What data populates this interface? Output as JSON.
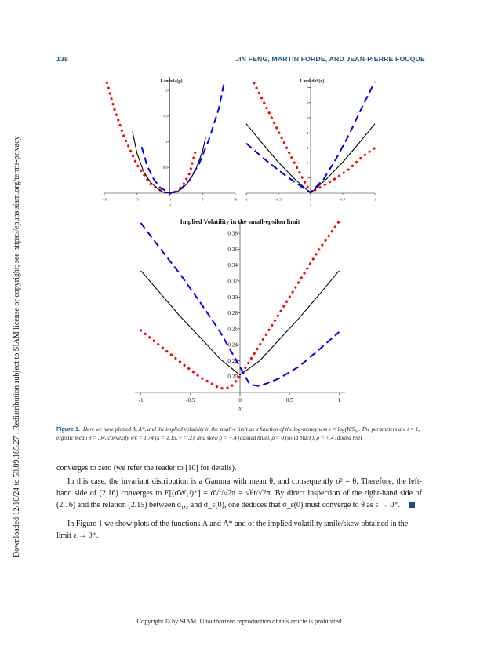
{
  "sidebar": {
    "text": "Downloaded 12/10/24 to 50.89.185.27 . Redistribution subject to SIAM license or copyright; see https://epubs.siam.org/terms-privacy"
  },
  "header": {
    "page_number": "138",
    "authors": "JIN FENG, MARTIN FORDE, AND JEAN-PIERRE FOUQUE"
  },
  "chart_data": [
    {
      "type": "line",
      "title": "Lambda(p)",
      "xlabel": "p",
      "xlim": [
        -10,
        10
      ],
      "ylim": [
        0,
        2.2
      ],
      "xticks": [
        "-10",
        "-5",
        "0",
        "5",
        "10"
      ],
      "yticks": [
        "0.5",
        "1",
        "1.5",
        "2"
      ],
      "series": [
        {
          "style": "dotted",
          "color": "#ff0000",
          "x": [
            -9.6,
            -8.5,
            -7,
            -5,
            -3,
            -1,
            0,
            1,
            2,
            3,
            4
          ],
          "y": [
            2.15,
            1.65,
            1.1,
            0.55,
            0.18,
            0.02,
            0,
            0.03,
            0.15,
            0.38,
            0.85
          ]
        },
        {
          "style": "solid",
          "color": "#000000",
          "x": [
            -5.7,
            -5,
            -4,
            -3,
            -2,
            -1,
            0,
            1,
            2,
            3,
            4,
            5,
            5.5
          ],
          "y": [
            1.2,
            0.77,
            0.42,
            0.22,
            0.1,
            0.02,
            0,
            0.02,
            0.1,
            0.24,
            0.47,
            0.82,
            1.1
          ]
        },
        {
          "style": "dashed",
          "color": "#0000ff",
          "x": [
            -4.3,
            -3.5,
            -2.5,
            -1.5,
            0,
            1.5,
            3,
            4.5,
            6,
            7.5,
            8.3
          ],
          "y": [
            0.9,
            0.55,
            0.28,
            0.11,
            0,
            0.06,
            0.25,
            0.58,
            1.05,
            1.65,
            2.15
          ]
        }
      ]
    },
    {
      "type": "line",
      "title": "Lambda*(q)",
      "xlabel": "q",
      "xlim": [
        -1,
        1
      ],
      "ylim": [
        0,
        7.5
      ],
      "xticks": [
        "-1",
        "-0.5",
        "0",
        "0.5",
        "1"
      ],
      "yticks": [
        "1",
        "2",
        "3",
        "4",
        "5",
        "6",
        "7"
      ],
      "series": [
        {
          "style": "dotted",
          "color": "#ff0000",
          "x": [
            -0.88,
            -0.7,
            -0.5,
            -0.3,
            -0.1,
            0,
            0.2,
            0.4,
            0.6,
            0.8,
            1
          ],
          "y": [
            7.3,
            5.8,
            4.1,
            2.4,
            0.8,
            0.05,
            0.5,
            1.0,
            1.6,
            2.4,
            3.0
          ]
        },
        {
          "style": "solid",
          "color": "#000000",
          "x": [
            -1,
            -0.75,
            -0.5,
            -0.25,
            0,
            0.25,
            0.5,
            0.75,
            1
          ],
          "y": [
            4.6,
            3.3,
            2.05,
            0.95,
            0,
            0.95,
            2.05,
            3.3,
            4.6
          ]
        },
        {
          "style": "dashed",
          "color": "#0000ff",
          "x": [
            -1,
            -0.7,
            -0.4,
            -0.1,
            0,
            0.2,
            0.4,
            0.6,
            0.8,
            1
          ],
          "y": [
            3.3,
            2.2,
            1.2,
            0.3,
            0.05,
            0.9,
            2.3,
            3.9,
            5.7,
            7.4
          ]
        }
      ]
    },
    {
      "type": "line",
      "title": "Implied Volatility in the small-epsilon limit",
      "xlabel": "x",
      "xlim": [
        -1.06,
        1.06
      ],
      "ylim": [
        0.18,
        0.39
      ],
      "xticks": [
        "-1",
        "-0.5",
        "0",
        "0.5",
        "1"
      ],
      "yticks": [
        "0.20",
        "0.22",
        "0.24",
        "0.26",
        "0.28",
        "0.30",
        "0.32",
        "0.34",
        "0.36",
        "0.38"
      ],
      "series": [
        {
          "style": "dotted",
          "color": "#ff0000",
          "x": [
            -1,
            -0.8,
            -0.6,
            -0.4,
            -0.2,
            -0.1,
            0,
            0.1,
            0.2,
            0.4,
            0.6,
            0.8,
            1
          ],
          "y": [
            0.258,
            0.238,
            0.218,
            0.199,
            0.185,
            0.186,
            0.2,
            0.22,
            0.24,
            0.28,
            0.32,
            0.36,
            0.395
          ]
        },
        {
          "style": "solid",
          "color": "#000000",
          "x": [
            -1,
            -0.8,
            -0.6,
            -0.4,
            -0.2,
            0,
            0.2,
            0.4,
            0.6,
            0.8,
            1
          ],
          "y": [
            0.333,
            0.304,
            0.275,
            0.249,
            0.222,
            0.202,
            0.22,
            0.247,
            0.274,
            0.303,
            0.333
          ]
        },
        {
          "style": "dashed",
          "color": "#0000ff",
          "x": [
            -1,
            -0.8,
            -0.6,
            -0.4,
            -0.2,
            0,
            0.1,
            0.2,
            0.4,
            0.6,
            0.8,
            1
          ],
          "y": [
            0.393,
            0.36,
            0.328,
            0.293,
            0.256,
            0.212,
            0.19,
            0.188,
            0.198,
            0.213,
            0.234,
            0.256
          ]
        }
      ]
    }
  ],
  "caption": {
    "label": "Figure 1.",
    "text": "Here we have plotted Λ, Λ*, and the implied volatility in the small-ε limit as a function of the log-moneyness x = log(K/S₀). The parameters are t = 1, ergodic mean θ = .04, convexity ν/κ = 1.74 (κ = 1.15, ν = .2), and skew ρ = −.4 (dashed blue), ρ = 0 (solid black), ρ = +.4 (dotted red)."
  },
  "body": {
    "p1": "converges to zero (we refer the reader to [10] for details).",
    "p2": "In this case, the invariant distribution is a Gamma with mean θ, and consequently σ̄² = θ. Therefore, the left-hand side of (2.16) converges to E[(σ̄W₁¹)⁺] = σ̄√t/√2π = √θt/√2π. By direct inspection of the right-hand side of (2.16) and the relation (2.15) between d₁,₂ and σ_ε(0), one deduces that σ_ε(0) must converge to θ as ε → 0⁺.",
    "p3": "In Figure 1 we show plots of the functions Λ and Λ* and of the implied volatility smile/skew obtained in the limit ε → 0⁺."
  },
  "footer": {
    "text": "Copyright © by SIAM. Unauthorized reproduction of this article is prohibited."
  }
}
